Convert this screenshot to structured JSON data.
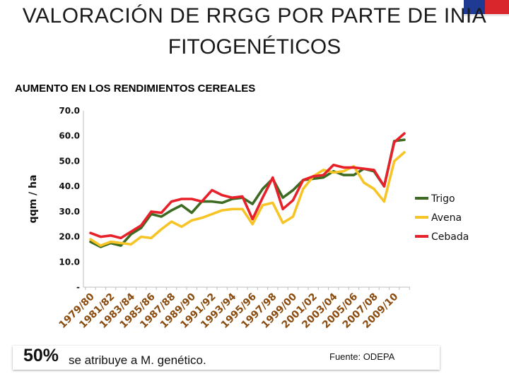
{
  "header": {
    "title_line1": "VALORACIÓN DE RRGG POR PARTE DE INIA",
    "title_line2": "FITOGENÉTICOS",
    "subtitle": "AUMENTO EN LOS RENDIMIENTOS CEREALES"
  },
  "footer": {
    "percent": "50%",
    "attribution": "se atribuye a  M. genético.",
    "source": "Fuente: ODEPA"
  },
  "colors": {
    "trigo": "#3d6b22",
    "avena": "#f7c425",
    "cebada": "#e8202a",
    "flag_blue": "#1f3a93",
    "flag_red": "#d9262c"
  },
  "chart_data": {
    "type": "line",
    "title": "",
    "xlabel": "",
    "ylabel": "qqm / ha",
    "ylim": [
      0,
      70
    ],
    "y_ticks": [
      0,
      10,
      20,
      30,
      40,
      50,
      60,
      70
    ],
    "y_tick_labels": [
      "-",
      "10.0",
      "20.0",
      "30.0",
      "40.0",
      "50.0",
      "60.0",
      "70.0"
    ],
    "categories": [
      "1979/80",
      "1980/81",
      "1981/82",
      "1982/83",
      "1983/84",
      "1984/85",
      "1985/86",
      "1986/87",
      "1987/88",
      "1988/89",
      "1989/90",
      "1990/91",
      "1991/92",
      "1992/93",
      "1993/94",
      "1994/95",
      "1995/96",
      "1996/97",
      "1997/98",
      "1998/99",
      "1999/00",
      "2000/01",
      "2001/02",
      "2002/03",
      "2003/04",
      "2004/05",
      "2005/06",
      "2006/07",
      "2007/08",
      "2008/09",
      "2009/10",
      "2010/11"
    ],
    "x_tick_labels": [
      "1979/80",
      "1981/82",
      "1983/84",
      "1985/86",
      "1987/88",
      "1989/90",
      "1991/92",
      "1993/94",
      "1995/96",
      "1997/98",
      "1999/00",
      "2001/02",
      "2003/04",
      "2005/06",
      "2007/08",
      "2009/10"
    ],
    "legend_position": "right",
    "series": [
      {
        "name": "Trigo",
        "values": [
          18,
          16,
          17.5,
          16.5,
          21,
          23.5,
          29,
          28,
          30.5,
          32.5,
          29.5,
          34,
          34,
          33.5,
          35,
          35.5,
          33,
          39,
          43,
          35.5,
          38.5,
          42.5,
          43,
          43.5,
          46,
          44.5,
          44.5,
          47,
          46,
          40,
          58,
          58.5
        ]
      },
      {
        "name": "Avena",
        "values": [
          19,
          16.5,
          18,
          17.5,
          17,
          20,
          19.5,
          23,
          26,
          24,
          26.5,
          27.5,
          29,
          30.5,
          31,
          31,
          25,
          32.5,
          33.5,
          25.5,
          28,
          39,
          44,
          46.5,
          45.5,
          46,
          48,
          41.5,
          39,
          34,
          50,
          53.5
        ]
      },
      {
        "name": "Cebada",
        "values": [
          21.5,
          20,
          20.5,
          19.5,
          22,
          24.5,
          30,
          29.5,
          34,
          35,
          35,
          34,
          38.5,
          36.5,
          35.5,
          36,
          27,
          35.5,
          43.5,
          31,
          34.5,
          42.5,
          44,
          44.5,
          48.5,
          47.5,
          47.5,
          47,
          46.5,
          40,
          57.5,
          61
        ]
      }
    ]
  }
}
